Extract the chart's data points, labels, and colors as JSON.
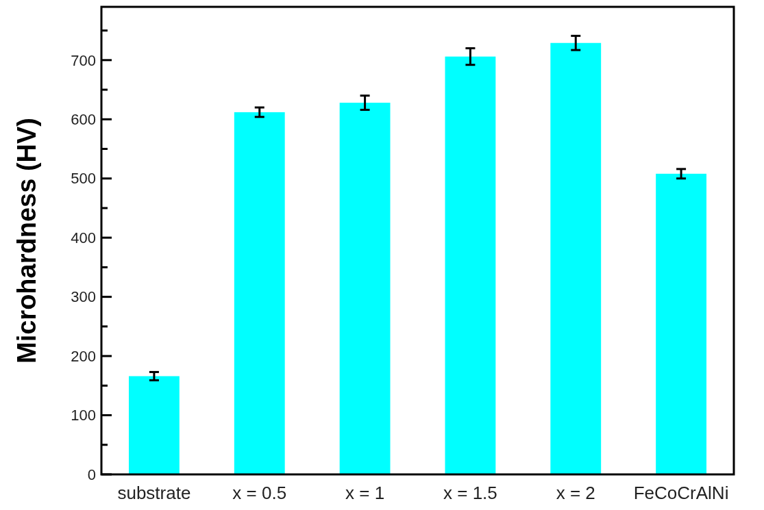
{
  "chart_data": {
    "type": "bar",
    "ylabel": "Microhardness (HV)",
    "categories": [
      "substrate",
      "x = 0.5",
      "x = 1",
      "x = 1.5",
      "x = 2",
      "FeCoCrAlNi"
    ],
    "values": [
      166,
      612,
      628,
      706,
      729,
      508
    ],
    "errors": [
      7,
      8,
      12,
      14,
      12,
      8
    ],
    "color": "#00ffff",
    "ylim": [
      0,
      790
    ],
    "yticks": [
      0,
      100,
      200,
      300,
      400,
      500,
      600,
      700
    ],
    "grid": false
  }
}
